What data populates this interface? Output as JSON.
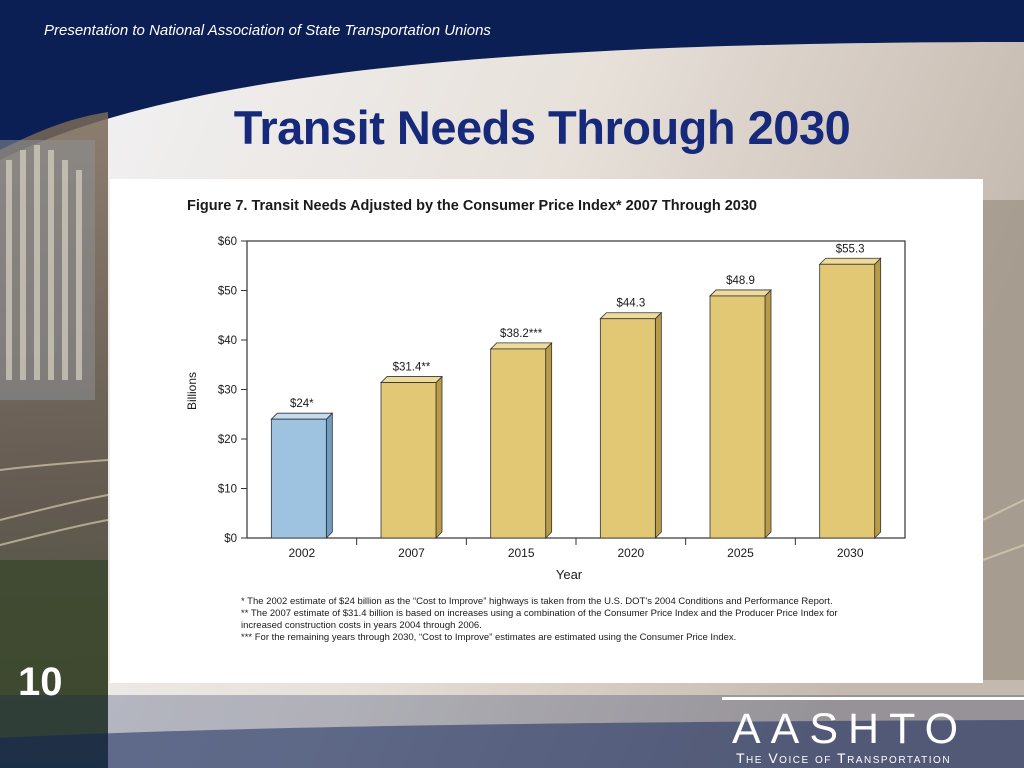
{
  "slide": {
    "header": "Presentation to National Association of State Transportation Unions",
    "title": "Transit Needs Through 2030",
    "slide_number": "10",
    "logo_text": "AASHTO",
    "logo_tagline": "The Voice of Transportation"
  },
  "colors": {
    "background": "#0c1f55",
    "title": "#16297a",
    "bar_2002": "#9dc3e0",
    "bar_other": "#e2c774"
  },
  "chart_data": {
    "type": "bar",
    "title": "Figure 7. Transit Needs Adjusted by the Consumer Price Index* 2007 Through 2030",
    "xlabel": "Year",
    "ylabel": "Billions",
    "categories": [
      "2002",
      "2007",
      "2015",
      "2020",
      "2025",
      "2030"
    ],
    "values": [
      24,
      31.4,
      38.2,
      44.3,
      48.9,
      55.3
    ],
    "data_labels": [
      "$24*",
      "$31.4**",
      "$38.2***",
      "$44.3",
      "$48.9",
      "$55.3"
    ],
    "yticks": [
      "$0",
      "$10",
      "$20",
      "$30",
      "$40",
      "$50",
      "$60"
    ],
    "ylim": [
      0,
      60
    ],
    "notes": [
      "* The 2002 estimate of $24 billion as the “Cost to Improve” highways is taken from the U.S. DOT’s 2004 Conditions and Performance Report.",
      "** The 2007 estimate of $31.4 billion is based on increases using a combination of the Consumer Price Index and the Producer Price Index for",
      "increased construction costs in years 2004 through 2006.",
      "*** For the remaining years through 2030, “Cost to Improve” estimates are estimated using the Consumer Price Index."
    ]
  }
}
